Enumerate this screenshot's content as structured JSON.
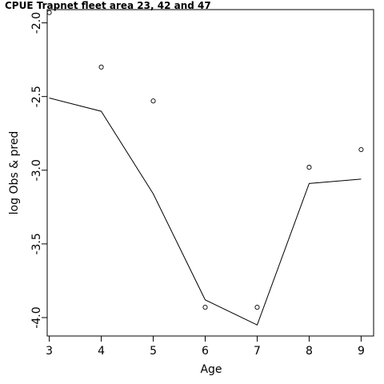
{
  "chart_data": {
    "type": "line",
    "title": "CPUE Trapnet fleet area 23, 42 and 47",
    "xlabel": "Age",
    "ylabel": "log Obs & pred",
    "x": [
      3,
      4,
      5,
      6,
      7,
      8,
      9
    ],
    "xlim": [
      2.96,
      9.24
    ],
    "ylim": [
      -4.125,
      -1.91
    ],
    "xticks": [
      3,
      4,
      5,
      6,
      7,
      8,
      9
    ],
    "yticks": [
      -4.0,
      -3.5,
      -3.0,
      -2.5,
      -2.0
    ],
    "ytick_labels": [
      "-4.0",
      "-3.5",
      "-3.0",
      "-2.5",
      "-2.0"
    ],
    "series": [
      {
        "kind": "points",
        "marker": "open-circle",
        "values": [
          -1.93,
          -2.3,
          -2.53,
          -3.93,
          -3.93,
          -2.98,
          -2.86
        ]
      },
      {
        "kind": "line",
        "values": [
          -2.51,
          -2.6,
          -3.16,
          -3.88,
          -4.05,
          -3.09,
          -3.06
        ]
      }
    ],
    "grid": false,
    "legend": "none"
  }
}
